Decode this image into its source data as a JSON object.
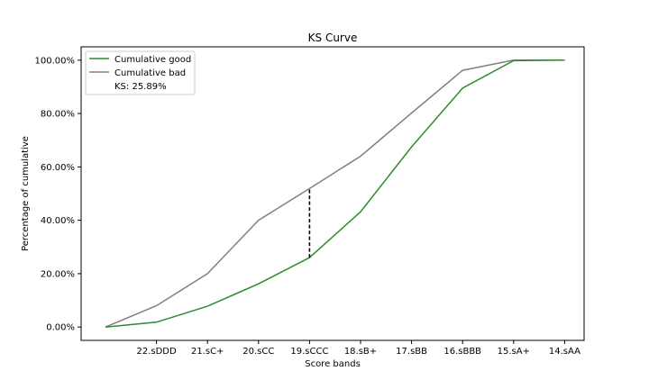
{
  "chart_data": {
    "type": "line",
    "title": "KS Curve",
    "xlabel": "Score bands",
    "ylabel": "Percentage of cumulative",
    "categories": [
      "",
      "22.sDDD",
      "21.sC+",
      "20.sCC",
      "19.sCCC",
      "18.sB+",
      "17.sBB",
      "16.sBBB",
      "15.sA+",
      "14.sAA"
    ],
    "ylim": [
      -5,
      105
    ],
    "yticks": [
      0,
      20,
      40,
      60,
      80,
      100
    ],
    "ytick_labels": [
      "0.00%",
      "20.00%",
      "40.00%",
      "60.00%",
      "80.00%",
      "100.00%"
    ],
    "series": [
      {
        "name": "Cumulative good",
        "color": "#2e8b2e",
        "values": [
          0,
          1.8,
          7.8,
          16.2,
          26.0,
          43.2,
          67.5,
          89.5,
          99.8,
          100
        ]
      },
      {
        "name": "Cumulative bad",
        "color": "#808080",
        "values": [
          0,
          8.0,
          20.0,
          40.0,
          51.9,
          64.0,
          80.2,
          96.2,
          100,
          100
        ]
      }
    ],
    "ks": {
      "label": "KS: 25.89%",
      "category_index": 4,
      "from": 26.0,
      "to": 51.9
    },
    "grid": false,
    "legend_position": "upper-left"
  }
}
